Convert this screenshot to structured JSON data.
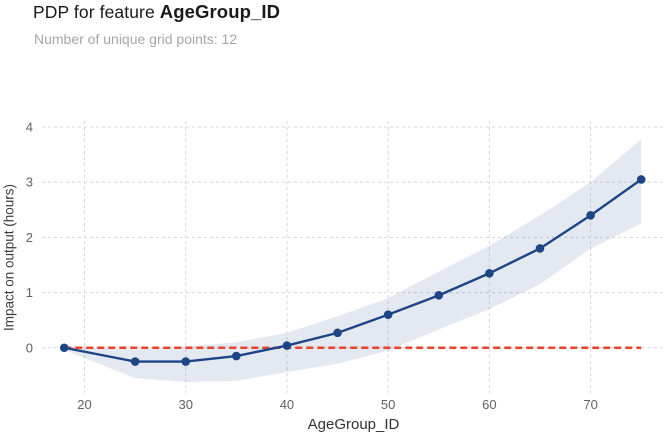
{
  "title": {
    "prefix": "PDP for feature ",
    "feature": "AgeGroup_ID"
  },
  "subtitle": "Number of unique grid points: 12",
  "chart_data": {
    "type": "line",
    "title": "PDP for feature AgeGroup_ID",
    "subtitle": "Number of unique grid points: 12",
    "xlabel": "AgeGroup_ID",
    "ylabel": "Impact on output (hours)",
    "x": [
      18,
      25,
      30,
      35,
      40,
      45,
      50,
      55,
      60,
      65,
      70,
      75
    ],
    "y": [
      0.0,
      -0.25,
      -0.25,
      -0.15,
      0.04,
      0.27,
      0.6,
      0.95,
      1.35,
      1.8,
      2.4,
      3.05
    ],
    "band_upper": [
      0.03,
      -0.03,
      0.02,
      0.1,
      0.27,
      0.57,
      0.9,
      1.38,
      1.85,
      2.4,
      3.0,
      3.78
    ],
    "band_lower": [
      -0.04,
      -0.55,
      -0.62,
      -0.6,
      -0.44,
      -0.29,
      -0.05,
      0.33,
      0.7,
      1.15,
      1.8,
      2.25
    ],
    "baseline_y": 0,
    "xticks": [
      20,
      30,
      40,
      50,
      60,
      70
    ],
    "yticks": [
      0,
      1,
      2,
      3,
      4
    ],
    "xlim": [
      15.8,
      77.35
    ],
    "ylim": [
      -0.82,
      4.11
    ],
    "grid": true,
    "legend": false,
    "num_grid_points": 12,
    "colors": {
      "line": "#1c4585",
      "marker": "#1c4585",
      "band": "rgba(31,73,143,0.12)",
      "baseline": "#e8432c",
      "grid": "#d6d6d6",
      "tick": "#616161"
    }
  }
}
